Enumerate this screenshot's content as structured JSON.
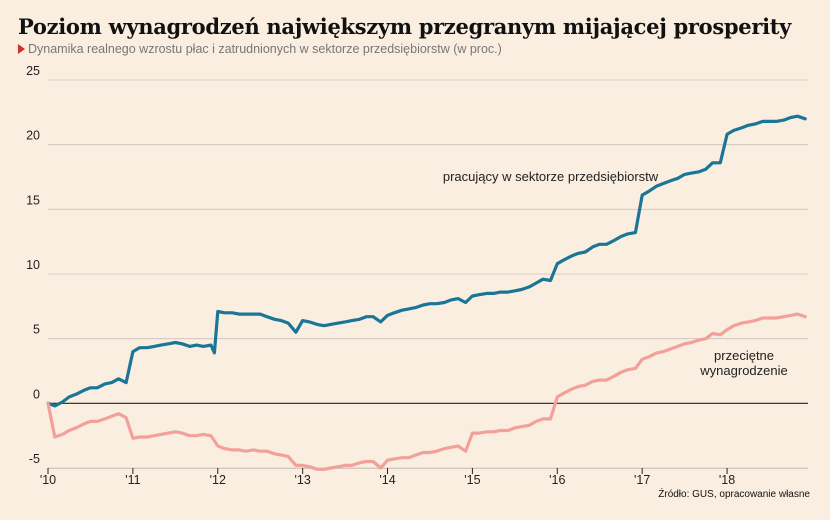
{
  "title": "Poziom wynagrodzeń największym przegranym mijającej prosperity",
  "subtitle": "Dynamika realnego wzrostu płac i zatrudnionych w sektorze przedsiębiorstw (w proc.)",
  "source": "Źródło: GUS, opracowanie własne",
  "colors": {
    "background": "#faeee0",
    "series_1": "#1b7596",
    "series_2": "#f2a19a",
    "marker": "#d32f2f"
  },
  "chart_data": {
    "type": "line",
    "title": "Poziom wynagrodzeń największym przegranym mijającej prosperity",
    "subtitle": "Dynamika realnego wzrostu płac i zatrudnionych w sektorze przedsiębiorstw (w proc.)",
    "xlabel": "",
    "ylabel": "",
    "xlim": [
      2010,
      2018.93
    ],
    "ylim": [
      -5,
      25
    ],
    "y_ticks": [
      25,
      20,
      15,
      10,
      5,
      0,
      -5
    ],
    "x_ticks": [
      {
        "value": 2010,
        "label": "'10"
      },
      {
        "value": 2011,
        "label": "'11"
      },
      {
        "value": 2012,
        "label": "'12"
      },
      {
        "value": 2013,
        "label": "'13"
      },
      {
        "value": 2014,
        "label": "'14"
      },
      {
        "value": 2015,
        "label": "'15"
      },
      {
        "value": 2016,
        "label": "'16"
      },
      {
        "value": 2017,
        "label": "'17"
      },
      {
        "value": 2018,
        "label": "'18"
      }
    ],
    "grid": "horizontal",
    "series": [
      {
        "name": "pracujący w sektorze przedsiębiorstw",
        "points": [
          [
            2010.0,
            0.0
          ],
          [
            2010.08,
            -0.2
          ],
          [
            2010.17,
            0.1
          ],
          [
            2010.25,
            0.5
          ],
          [
            2010.33,
            0.7
          ],
          [
            2010.42,
            1.0
          ],
          [
            2010.5,
            1.2
          ],
          [
            2010.58,
            1.2
          ],
          [
            2010.67,
            1.5
          ],
          [
            2010.75,
            1.6
          ],
          [
            2010.83,
            1.9
          ],
          [
            2010.92,
            1.6
          ],
          [
            2011.0,
            4.0
          ],
          [
            2011.08,
            4.3
          ],
          [
            2011.17,
            4.3
          ],
          [
            2011.25,
            4.4
          ],
          [
            2011.33,
            4.5
          ],
          [
            2011.42,
            4.6
          ],
          [
            2011.5,
            4.7
          ],
          [
            2011.58,
            4.6
          ],
          [
            2011.67,
            4.4
          ],
          [
            2011.75,
            4.5
          ],
          [
            2011.83,
            4.4
          ],
          [
            2011.92,
            4.5
          ],
          [
            2011.96,
            3.9
          ],
          [
            2012.0,
            7.1
          ],
          [
            2012.08,
            7.0
          ],
          [
            2012.17,
            7.0
          ],
          [
            2012.25,
            6.9
          ],
          [
            2012.33,
            6.9
          ],
          [
            2012.42,
            6.9
          ],
          [
            2012.5,
            6.9
          ],
          [
            2012.58,
            6.7
          ],
          [
            2012.67,
            6.5
          ],
          [
            2012.75,
            6.4
          ],
          [
            2012.83,
            6.2
          ],
          [
            2012.92,
            5.5
          ],
          [
            2013.0,
            6.4
          ],
          [
            2013.08,
            6.3
          ],
          [
            2013.17,
            6.1
          ],
          [
            2013.25,
            6.0
          ],
          [
            2013.33,
            6.1
          ],
          [
            2013.42,
            6.2
          ],
          [
            2013.5,
            6.3
          ],
          [
            2013.58,
            6.4
          ],
          [
            2013.67,
            6.5
          ],
          [
            2013.75,
            6.7
          ],
          [
            2013.83,
            6.7
          ],
          [
            2013.92,
            6.3
          ],
          [
            2014.0,
            6.8
          ],
          [
            2014.08,
            7.0
          ],
          [
            2014.17,
            7.2
          ],
          [
            2014.25,
            7.3
          ],
          [
            2014.33,
            7.4
          ],
          [
            2014.42,
            7.6
          ],
          [
            2014.5,
            7.7
          ],
          [
            2014.58,
            7.7
          ],
          [
            2014.67,
            7.8
          ],
          [
            2014.75,
            8.0
          ],
          [
            2014.83,
            8.1
          ],
          [
            2014.92,
            7.8
          ],
          [
            2015.0,
            8.3
          ],
          [
            2015.08,
            8.4
          ],
          [
            2015.17,
            8.5
          ],
          [
            2015.25,
            8.5
          ],
          [
            2015.33,
            8.6
          ],
          [
            2015.42,
            8.6
          ],
          [
            2015.5,
            8.7
          ],
          [
            2015.58,
            8.8
          ],
          [
            2015.67,
            9.0
          ],
          [
            2015.75,
            9.3
          ],
          [
            2015.83,
            9.6
          ],
          [
            2015.92,
            9.5
          ],
          [
            2016.0,
            10.8
          ],
          [
            2016.08,
            11.1
          ],
          [
            2016.17,
            11.4
          ],
          [
            2016.25,
            11.6
          ],
          [
            2016.33,
            11.7
          ],
          [
            2016.42,
            12.1
          ],
          [
            2016.5,
            12.3
          ],
          [
            2016.58,
            12.3
          ],
          [
            2016.67,
            12.6
          ],
          [
            2016.75,
            12.9
          ],
          [
            2016.83,
            13.1
          ],
          [
            2016.92,
            13.2
          ],
          [
            2017.0,
            16.1
          ],
          [
            2017.08,
            16.4
          ],
          [
            2017.17,
            16.8
          ],
          [
            2017.25,
            17.0
          ],
          [
            2017.33,
            17.2
          ],
          [
            2017.42,
            17.4
          ],
          [
            2017.5,
            17.7
          ],
          [
            2017.58,
            17.8
          ],
          [
            2017.67,
            17.9
          ],
          [
            2017.75,
            18.1
          ],
          [
            2017.83,
            18.6
          ],
          [
            2017.92,
            18.6
          ],
          [
            2018.0,
            20.8
          ],
          [
            2018.08,
            21.1
          ],
          [
            2018.17,
            21.3
          ],
          [
            2018.25,
            21.5
          ],
          [
            2018.33,
            21.6
          ],
          [
            2018.42,
            21.8
          ],
          [
            2018.5,
            21.8
          ],
          [
            2018.58,
            21.8
          ],
          [
            2018.67,
            21.9
          ],
          [
            2018.75,
            22.1
          ],
          [
            2018.83,
            22.2
          ],
          [
            2018.92,
            22.0
          ]
        ]
      },
      {
        "name": "przeciętne wynagrodzenie",
        "points": [
          [
            2010.0,
            0.0
          ],
          [
            2010.08,
            -2.6
          ],
          [
            2010.17,
            -2.4
          ],
          [
            2010.25,
            -2.1
          ],
          [
            2010.33,
            -1.9
          ],
          [
            2010.42,
            -1.6
          ],
          [
            2010.5,
            -1.4
          ],
          [
            2010.58,
            -1.4
          ],
          [
            2010.67,
            -1.2
          ],
          [
            2010.75,
            -1.0
          ],
          [
            2010.83,
            -0.8
          ],
          [
            2010.92,
            -1.1
          ],
          [
            2011.0,
            -2.7
          ],
          [
            2011.08,
            -2.6
          ],
          [
            2011.17,
            -2.6
          ],
          [
            2011.25,
            -2.5
          ],
          [
            2011.33,
            -2.4
          ],
          [
            2011.42,
            -2.3
          ],
          [
            2011.5,
            -2.2
          ],
          [
            2011.58,
            -2.3
          ],
          [
            2011.67,
            -2.5
          ],
          [
            2011.75,
            -2.5
          ],
          [
            2011.83,
            -2.4
          ],
          [
            2011.92,
            -2.5
          ],
          [
            2012.0,
            -3.3
          ],
          [
            2012.08,
            -3.5
          ],
          [
            2012.17,
            -3.6
          ],
          [
            2012.25,
            -3.6
          ],
          [
            2012.33,
            -3.7
          ],
          [
            2012.42,
            -3.6
          ],
          [
            2012.5,
            -3.7
          ],
          [
            2012.58,
            -3.7
          ],
          [
            2012.67,
            -3.9
          ],
          [
            2012.75,
            -4.0
          ],
          [
            2012.83,
            -4.1
          ],
          [
            2012.92,
            -4.8
          ],
          [
            2013.0,
            -4.8
          ],
          [
            2013.08,
            -4.9
          ],
          [
            2013.17,
            -5.1
          ],
          [
            2013.25,
            -5.1
          ],
          [
            2013.33,
            -5.0
          ],
          [
            2013.42,
            -4.9
          ],
          [
            2013.5,
            -4.8
          ],
          [
            2013.58,
            -4.8
          ],
          [
            2013.67,
            -4.6
          ],
          [
            2013.75,
            -4.5
          ],
          [
            2013.83,
            -4.5
          ],
          [
            2013.92,
            -5.0
          ],
          [
            2014.0,
            -4.4
          ],
          [
            2014.08,
            -4.3
          ],
          [
            2014.17,
            -4.2
          ],
          [
            2014.25,
            -4.2
          ],
          [
            2014.33,
            -4.0
          ],
          [
            2014.42,
            -3.8
          ],
          [
            2014.5,
            -3.8
          ],
          [
            2014.58,
            -3.7
          ],
          [
            2014.67,
            -3.5
          ],
          [
            2014.75,
            -3.4
          ],
          [
            2014.83,
            -3.3
          ],
          [
            2014.92,
            -3.7
          ],
          [
            2015.0,
            -2.3
          ],
          [
            2015.08,
            -2.3
          ],
          [
            2015.17,
            -2.2
          ],
          [
            2015.25,
            -2.2
          ],
          [
            2015.33,
            -2.1
          ],
          [
            2015.42,
            -2.1
          ],
          [
            2015.5,
            -1.9
          ],
          [
            2015.58,
            -1.8
          ],
          [
            2015.67,
            -1.7
          ],
          [
            2015.75,
            -1.4
          ],
          [
            2015.83,
            -1.2
          ],
          [
            2015.92,
            -1.2
          ],
          [
            2016.0,
            0.5
          ],
          [
            2016.08,
            0.8
          ],
          [
            2016.17,
            1.1
          ],
          [
            2016.25,
            1.3
          ],
          [
            2016.33,
            1.4
          ],
          [
            2016.42,
            1.7
          ],
          [
            2016.5,
            1.8
          ],
          [
            2016.58,
            1.8
          ],
          [
            2016.67,
            2.1
          ],
          [
            2016.75,
            2.4
          ],
          [
            2016.83,
            2.6
          ],
          [
            2016.92,
            2.7
          ],
          [
            2017.0,
            3.4
          ],
          [
            2017.08,
            3.6
          ],
          [
            2017.17,
            3.9
          ],
          [
            2017.25,
            4.0
          ],
          [
            2017.33,
            4.2
          ],
          [
            2017.42,
            4.4
          ],
          [
            2017.5,
            4.6
          ],
          [
            2017.58,
            4.7
          ],
          [
            2017.67,
            4.9
          ],
          [
            2017.75,
            5.0
          ],
          [
            2017.83,
            5.4
          ],
          [
            2017.92,
            5.3
          ],
          [
            2018.0,
            5.7
          ],
          [
            2018.08,
            6.0
          ],
          [
            2018.17,
            6.2
          ],
          [
            2018.25,
            6.3
          ],
          [
            2018.33,
            6.4
          ],
          [
            2018.42,
            6.6
          ],
          [
            2018.5,
            6.6
          ],
          [
            2018.58,
            6.6
          ],
          [
            2018.67,
            6.7
          ],
          [
            2018.75,
            6.8
          ],
          [
            2018.83,
            6.9
          ],
          [
            2018.92,
            6.7
          ]
        ]
      }
    ],
    "annotations": [
      {
        "series": 0,
        "lines": [
          "pracujący w sektorze przedsiębiorstw"
        ]
      },
      {
        "series": 1,
        "lines": [
          "przeciętne",
          "wynagrodzenie"
        ]
      }
    ]
  }
}
